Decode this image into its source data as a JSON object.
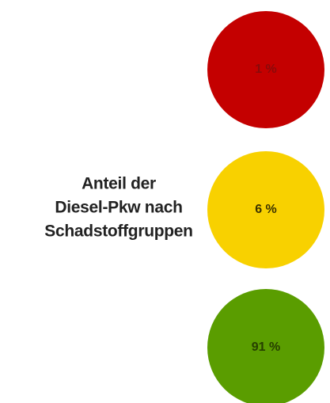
{
  "title_lines": [
    "Anteil der",
    "Diesel-Pkw nach",
    "Schadstoffgruppen"
  ],
  "lights": [
    {
      "label": "1 %",
      "color": "#c40000",
      "label_color": "#8a0a0a"
    },
    {
      "label": "6 %",
      "color": "#f8d100",
      "label_color": "#3b3200"
    },
    {
      "label": "91 %",
      "color": "#5a9d00",
      "label_color": "#263f00"
    }
  ]
}
